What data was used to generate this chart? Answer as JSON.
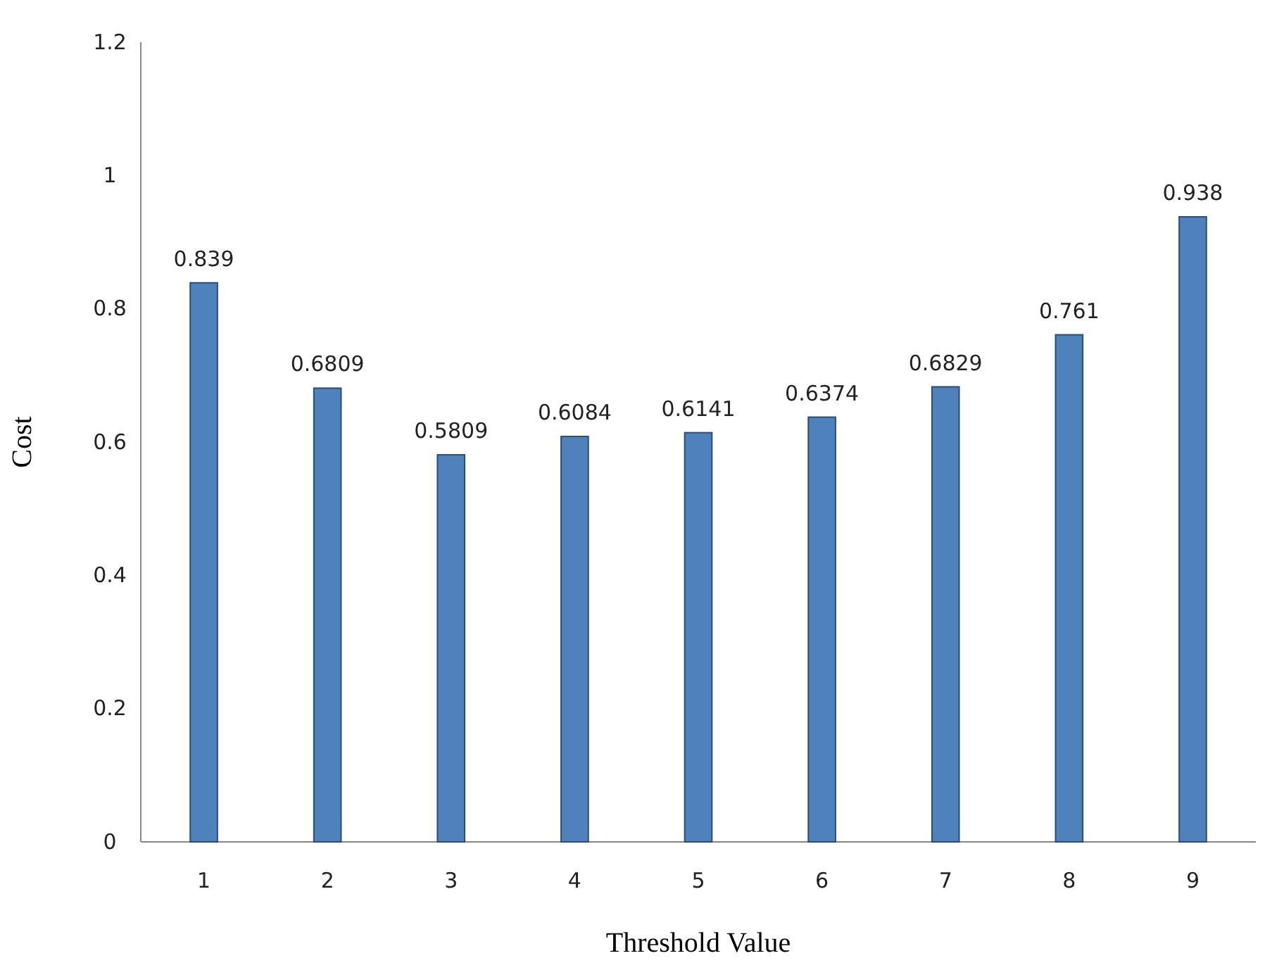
{
  "chart_data": {
    "type": "bar",
    "xlabel": "Threshold Value",
    "ylabel": "Cost",
    "categories": [
      "1",
      "2",
      "3",
      "4",
      "5",
      "6",
      "7",
      "8",
      "9"
    ],
    "values": [
      0.839,
      0.6809,
      0.5809,
      0.6084,
      0.6141,
      0.6374,
      0.6829,
      0.761,
      0.938
    ],
    "color": "#4f81bd",
    "ylim": [
      0,
      1.2
    ],
    "yticks": [
      0,
      0.2,
      0.4,
      0.6,
      0.8,
      1,
      1.2
    ],
    "data_labels": true
  }
}
